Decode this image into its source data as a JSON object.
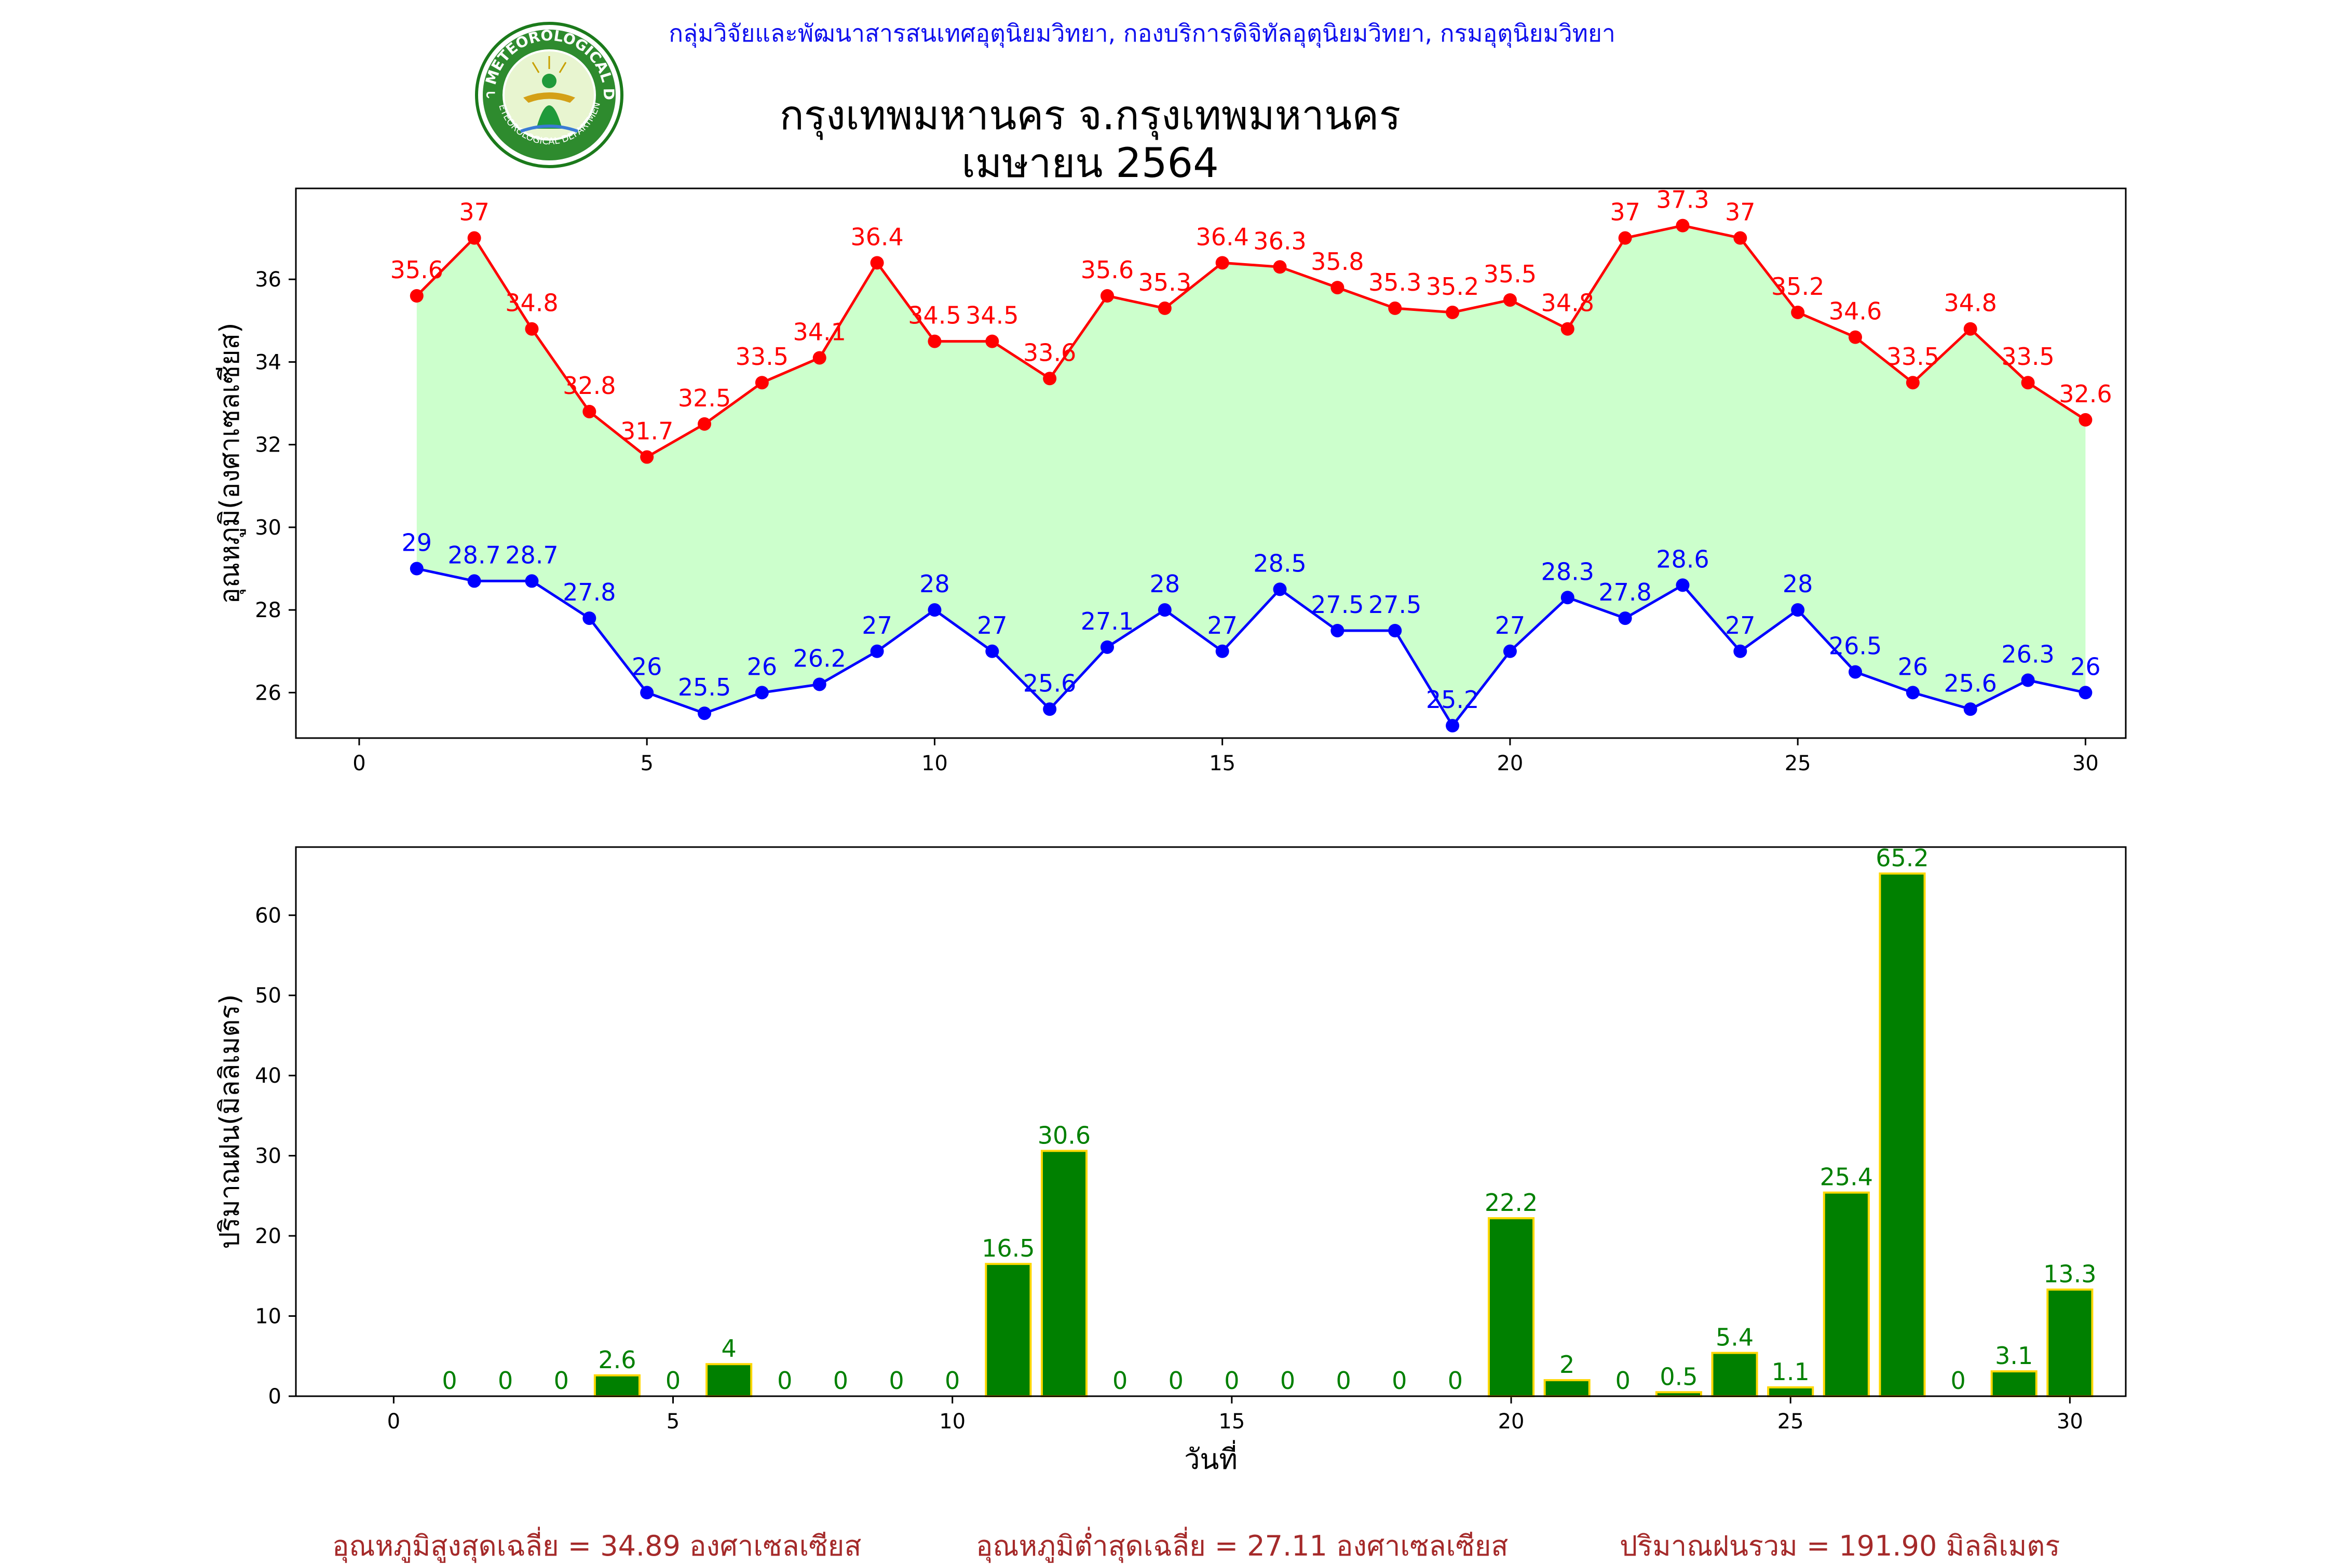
{
  "header": {
    "org_line": "กลุ่มวิจัยและพัฒนาสารสนเทศอุตุนิยมวิทยา, กองบริการดิจิทัลอุตุนิยมวิทยา, กรมอุตุนิยมวิทยา",
    "title_line1": "กรุงเทพมหานคร จ.กรุงเทพมหานคร",
    "title_line2": "เมษายน 2564",
    "logo_icon": "meteorological-department-seal-icon",
    "logo_text": "กรมอุตุนิยมวิทยา METEOROLOGICAL DEPARTMENT"
  },
  "chart_data": [
    {
      "type": "line",
      "ylabel": "อุณหภูมิ(องศาเซลเซียส)",
      "xlim": [
        -1.1,
        30.7
      ],
      "ylim": [
        24.9,
        38.2
      ],
      "xticks": [
        0,
        5,
        10,
        15,
        20,
        25,
        30
      ],
      "yticks": [
        26,
        28,
        30,
        32,
        34,
        36
      ],
      "fill_color": "#ccffcc",
      "series": [
        {
          "color": "#ff0000",
          "x": [
            1,
            2,
            3,
            4,
            5,
            6,
            7,
            8,
            9,
            10,
            11,
            12,
            13,
            14,
            15,
            16,
            17,
            18,
            19,
            20,
            21,
            22,
            23,
            24,
            25,
            26,
            27,
            28,
            29,
            30
          ],
          "values": [
            35.6,
            37.0,
            34.8,
            32.8,
            31.7,
            32.5,
            33.5,
            34.1,
            36.4,
            34.5,
            34.5,
            33.6,
            35.6,
            35.3,
            36.4,
            36.3,
            35.8,
            35.3,
            35.2,
            35.5,
            34.8,
            37.0,
            37.3,
            37.0,
            35.2,
            34.6,
            33.5,
            34.8,
            33.5,
            32.6
          ]
        },
        {
          "color": "#0000ff",
          "x": [
            1,
            2,
            3,
            4,
            5,
            6,
            7,
            8,
            9,
            10,
            11,
            12,
            13,
            14,
            15,
            16,
            17,
            18,
            19,
            20,
            21,
            22,
            23,
            24,
            25,
            26,
            27,
            28,
            29,
            30
          ],
          "values": [
            29.0,
            28.7,
            28.7,
            27.8,
            26.0,
            25.5,
            26.0,
            26.2,
            27.0,
            28.0,
            27.0,
            25.6,
            27.1,
            28.0,
            27.0,
            28.5,
            27.5,
            27.5,
            25.2,
            27.0,
            28.3,
            27.8,
            28.6,
            27.0,
            28.0,
            26.5,
            26.0,
            25.6,
            26.3,
            26.0
          ]
        }
      ]
    },
    {
      "type": "bar",
      "xlabel": "วันที่",
      "ylabel": "ปริมาณฝน(มิลลิเมตร)",
      "xlim": [
        -1.75,
        31.0
      ],
      "ylim": [
        0,
        68.5
      ],
      "xticks": [
        0,
        5,
        10,
        15,
        20,
        25,
        30
      ],
      "yticks": [
        0,
        10,
        20,
        30,
        40,
        50,
        60
      ],
      "bar_color": "#008000",
      "edge_color": "#ffd700",
      "label_color": "#008000",
      "categories": [
        1,
        2,
        3,
        4,
        5,
        6,
        7,
        8,
        9,
        10,
        11,
        12,
        13,
        14,
        15,
        16,
        17,
        18,
        19,
        20,
        21,
        22,
        23,
        24,
        25,
        26,
        27,
        28,
        29,
        30
      ],
      "values": [
        0.0,
        0.0,
        0.0,
        2.6,
        0.0,
        4.0,
        0.0,
        0.0,
        0.0,
        0.0,
        16.5,
        30.6,
        0.0,
        0.0,
        0.0,
        0.0,
        0.0,
        0.0,
        0.0,
        22.2,
        2.0,
        0.0,
        0.5,
        5.4,
        1.1,
        25.4,
        65.2,
        0.0,
        3.1,
        13.3
      ]
    }
  ],
  "footer": {
    "avg_max": "อุณหภูมิสูงสุดเฉลี่ย = 34.89 องศาเซลเซียส",
    "avg_min": "อุณหภูมิต่ำสุดเฉลี่ย = 27.11 องศาเซลเซียส",
    "total_rain": "ปริมาณฝนรวม = 191.90 มิลลิเมตร"
  }
}
